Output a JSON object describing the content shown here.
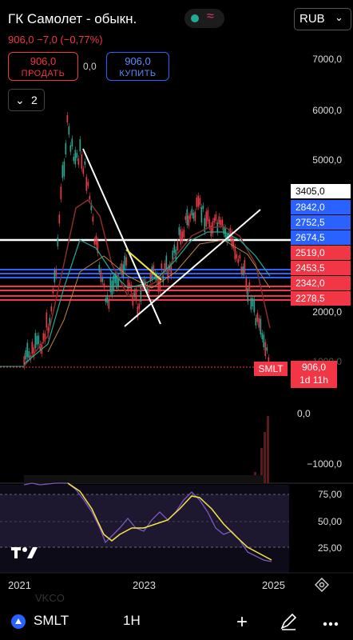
{
  "header": {
    "title": "ГК Самолет - обыкн.",
    "currency": "RUB",
    "quote": "906,0 −7,0 (−0,77%)"
  },
  "trade": {
    "sell_price": "906,0",
    "sell_label": "ПРОДАТЬ",
    "spread": "0,0",
    "buy_price": "906,0",
    "buy_label": "КУПИТЬ"
  },
  "indicators_count": "2",
  "price_axis": [
    "7000,0",
    "6000,0",
    "5000,0",
    "2000,0",
    "1000,0",
    "0,0",
    "−1000,0"
  ],
  "levels": [
    {
      "label": "3405,0",
      "color": "white"
    },
    {
      "label": "2842,0",
      "color": "blue"
    },
    {
      "label": "2752,5",
      "color": "blue"
    },
    {
      "label": "2674,5",
      "color": "blue"
    },
    {
      "label": "2519,0",
      "color": "red"
    },
    {
      "label": "2453,5",
      "color": "red"
    },
    {
      "label": "2342,0",
      "color": "red"
    },
    {
      "label": "2278,5",
      "color": "red"
    }
  ],
  "symbol_tag": "SMLT",
  "last_price": "906,0",
  "countdown": "1d 11h",
  "rsi_axis": [
    "75,00",
    "50,00",
    "25,00"
  ],
  "time_axis": [
    "2021",
    "2023",
    "2025"
  ],
  "footer": {
    "symbol": "SMLT",
    "timeframe": "1H",
    "ghost_text": "VKCO"
  },
  "colors": {
    "up": "#22ab94",
    "down": "#f23645",
    "blue_level": "#2962ff",
    "rsi_line": "#7e57c2",
    "rsi_ma": "#f5e642"
  }
}
